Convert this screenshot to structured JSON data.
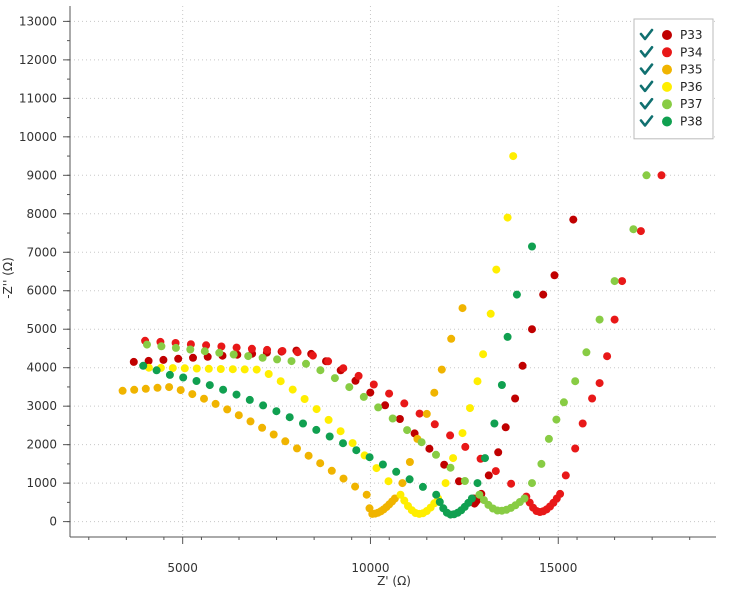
{
  "chart_data": {
    "type": "scatter",
    "xlabel": "Z' (Ω)",
    "ylabel": "-Z'' (Ω)",
    "xlim": [
      2000,
      19200
    ],
    "ylim": [
      -400,
      13400
    ],
    "x_ticks": [
      "5000",
      "10000",
      "15000"
    ],
    "x_tick_values": [
      5000,
      10000,
      15000
    ],
    "y_ticks": [
      "0",
      "1000",
      "2000",
      "3000",
      "4000",
      "5000",
      "6000",
      "7000",
      "8000",
      "9000",
      "10000",
      "11000",
      "12000",
      "13000"
    ],
    "y_tick_values": [
      0,
      1000,
      2000,
      3000,
      4000,
      5000,
      6000,
      7000,
      8000,
      9000,
      10000,
      11000,
      12000,
      13000
    ],
    "grid": true,
    "legend_position": "top-right",
    "series": [
      {
        "name": "P33",
        "color": "#c00000",
        "arc": {
          "x_start": 3700,
          "y_start": 4150,
          "x_max": 8100,
          "y_max": 4450,
          "x_end": 12750,
          "y_end": 600,
          "n": 24,
          "p": 1.4
        },
        "dip": {
          "x_center": 12450,
          "y_min": 250,
          "x_end": 12950,
          "n": 10
        },
        "tail": [
          [
            13150,
            1200
          ],
          [
            13400,
            1800
          ],
          [
            13600,
            2450
          ],
          [
            13850,
            3200
          ],
          [
            14050,
            4050
          ],
          [
            14300,
            5000
          ],
          [
            14600,
            5900
          ],
          [
            14900,
            6400
          ],
          [
            15400,
            7850
          ]
        ]
      },
      {
        "name": "P34",
        "color": "#e81818",
        "arc": {
          "x_start": 4000,
          "y_start": 4700,
          "x_max": 8100,
          "y_max": 4400,
          "x_end": 14150,
          "y_end": 650,
          "n": 26,
          "p": 1.35
        },
        "dip": {
          "x_center": 14500,
          "y_min": 250,
          "x_end": 15050,
          "n": 10
        },
        "tail": [
          [
            15200,
            1200
          ],
          [
            15450,
            1900
          ],
          [
            15650,
            2550
          ],
          [
            15900,
            3200
          ],
          [
            16100,
            3600
          ],
          [
            16300,
            4300
          ],
          [
            16500,
            5250
          ],
          [
            16700,
            6250
          ],
          [
            17200,
            7550
          ],
          [
            17750,
            9000
          ]
        ]
      },
      {
        "name": "P35",
        "color": "#f0b400",
        "arc": {
          "x_start": 3400,
          "y_start": 3400,
          "x_max": 4600,
          "y_max": 3500,
          "x_end": 9900,
          "y_end": 700,
          "n": 22,
          "p": 1.3
        },
        "dip": {
          "x_center": 10050,
          "y_min": 200,
          "x_end": 10650,
          "n": 10
        },
        "tail": [
          [
            10850,
            1000
          ],
          [
            11050,
            1550
          ],
          [
            11250,
            2150
          ],
          [
            11500,
            2800
          ],
          [
            11700,
            3350
          ],
          [
            11900,
            3950
          ],
          [
            12150,
            4750
          ],
          [
            12450,
            5550
          ]
        ]
      },
      {
        "name": "P36",
        "color": "#ffee00",
        "arc": {
          "x_start": 4100,
          "y_start": 4000,
          "x_max": 7000,
          "y_max": 3950,
          "x_end": 10800,
          "y_end": 700,
          "n": 22,
          "p": 1.3
        },
        "dip": {
          "x_center": 11300,
          "y_min": 200,
          "x_end": 11800,
          "n": 10
        },
        "tail": [
          [
            12000,
            1000
          ],
          [
            12200,
            1650
          ],
          [
            12450,
            2300
          ],
          [
            12650,
            2950
          ],
          [
            12850,
            3650
          ],
          [
            13000,
            4350
          ],
          [
            13200,
            5400
          ],
          [
            13350,
            6550
          ],
          [
            13650,
            7900
          ],
          [
            13800,
            9500
          ]
        ]
      },
      {
        "name": "P37",
        "color": "#88cc44",
        "arc": {
          "x_start": 4050,
          "y_start": 4600,
          "x_max": 8100,
          "y_max": 4150,
          "x_end": 12900,
          "y_end": 700,
          "n": 24,
          "p": 1.3
        },
        "dip": {
          "x_center": 13450,
          "y_min": 280,
          "x_end": 14100,
          "n": 10
        },
        "tail": [
          [
            14300,
            1000
          ],
          [
            14550,
            1500
          ],
          [
            14750,
            2150
          ],
          [
            14950,
            2650
          ],
          [
            15150,
            3100
          ],
          [
            15450,
            3650
          ],
          [
            15750,
            4400
          ],
          [
            16100,
            5250
          ],
          [
            16500,
            6250
          ],
          [
            17000,
            7600
          ],
          [
            17350,
            9000
          ]
        ]
      },
      {
        "name": "P38",
        "color": "#10a050",
        "arc": {
          "x_start": 3950,
          "y_start": 4050,
          "x_max": 4700,
          "y_max": 3800,
          "x_end": 11750,
          "y_end": 700,
          "n": 23,
          "p": 1.3
        },
        "dip": {
          "x_center": 12150,
          "y_min": 180,
          "x_end": 12700,
          "n": 10
        },
        "tail": [
          [
            12850,
            1000
          ],
          [
            13050,
            1650
          ],
          [
            13300,
            2550
          ],
          [
            13500,
            3550
          ],
          [
            13650,
            4800
          ],
          [
            13900,
            5900
          ],
          [
            14300,
            7150
          ]
        ]
      }
    ]
  },
  "legend": {
    "items": [
      {
        "label": "P33",
        "color": "#c00000",
        "checked": true
      },
      {
        "label": "P34",
        "color": "#e81818",
        "checked": true
      },
      {
        "label": "P35",
        "color": "#f0b400",
        "checked": true
      },
      {
        "label": "P36",
        "color": "#ffee00",
        "checked": true
      },
      {
        "label": "P37",
        "color": "#88cc44",
        "checked": true
      },
      {
        "label": "P38",
        "color": "#10a050",
        "checked": true
      }
    ]
  },
  "style": {
    "grid_color": "#c8c8c8",
    "axis_color": "#555555",
    "check_color": "#107070"
  }
}
